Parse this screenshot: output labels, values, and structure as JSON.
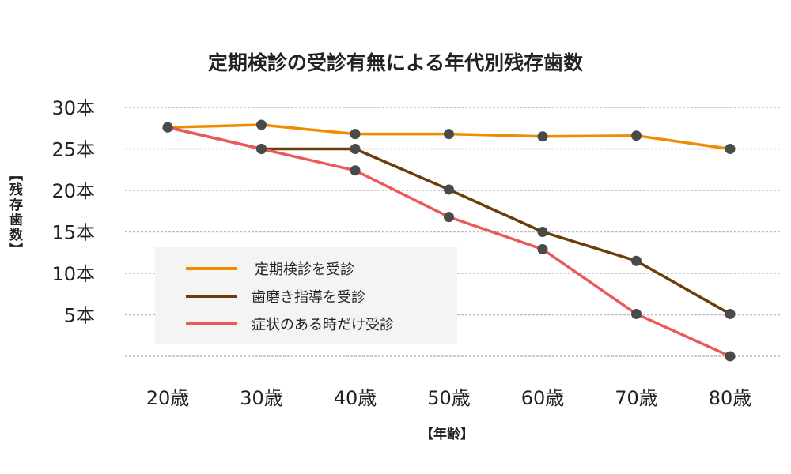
{
  "chart_data": {
    "type": "line",
    "title": "定期検診の受診有無による年代別残存歯数",
    "xlabel": "【年齢】",
    "ylabel": "【残存歯数】",
    "categories": [
      "20歳",
      "30歳",
      "40歳",
      "50歳",
      "60歳",
      "70歳",
      "80歳"
    ],
    "ylim": [
      0,
      30
    ],
    "yticks": [
      {
        "value": 30,
        "label": "30本"
      },
      {
        "value": 25,
        "label": "25本"
      },
      {
        "value": 20,
        "label": "20本"
      },
      {
        "value": 15,
        "label": "15本"
      },
      {
        "value": 10,
        "label": "10本"
      },
      {
        "value": 5,
        "label": "5本"
      },
      {
        "value": 0,
        "label": ""
      }
    ],
    "grid": true,
    "legend_position": "bottom-left",
    "marker_color": "#4a4a4a",
    "series": [
      {
        "name": "定期検診を受診",
        "color": "#f08c00",
        "values": [
          27.6,
          27.9,
          26.8,
          26.8,
          26.5,
          26.6,
          25.0
        ]
      },
      {
        "name": "歯磨き指導を受診",
        "color": "#6b3d08",
        "values": [
          27.6,
          25.0,
          25.0,
          20.1,
          15.0,
          11.5,
          5.1
        ]
      },
      {
        "name": "症状のある時だけ受診",
        "color": "#ea5a5a",
        "values": [
          27.6,
          25.0,
          22.4,
          16.8,
          12.9,
          5.1,
          0.0
        ]
      }
    ]
  }
}
